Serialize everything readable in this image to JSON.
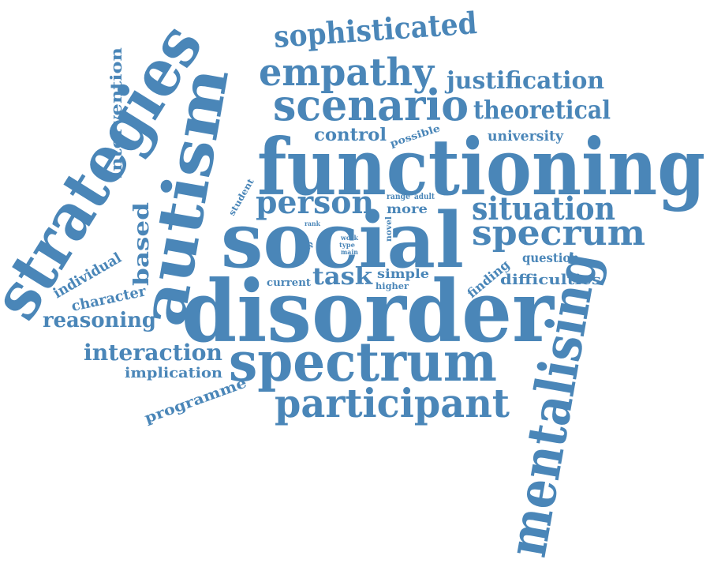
{
  "color": "#4a86b8",
  "words": {
    "functioning": "functioning",
    "disorder": "disorder",
    "social": "social",
    "spectrum": "spectrum",
    "autism": "autism",
    "strategies": "strategies",
    "mentalising": "mentalising",
    "participant": "participant",
    "scenario": "scenario",
    "empathy": "empathy",
    "sophisticated": "sophisticated",
    "specrum": "specrum",
    "situation": "situation",
    "person": "person",
    "theoretical": "theoretical",
    "justification": "justification",
    "interaction": "interaction",
    "reasoning": "reasoning",
    "task": "task",
    "based": "based",
    "control": "control",
    "intervention": "intervention",
    "implication": "implication",
    "programme": "programme",
    "university": "university",
    "difficulties": "difficulties",
    "individual": "individual",
    "character": "character",
    "question": "question",
    "finding": "finding",
    "possible": "possible",
    "simple": "simple",
    "current": "current",
    "more": "more",
    "student": "student",
    "range": "range",
    "adult": "adult",
    "higher": "higher",
    "rank": "rank",
    "work": "work",
    "type": "type",
    "main": "main",
    "novel": "novel",
    "group": "group"
  }
}
